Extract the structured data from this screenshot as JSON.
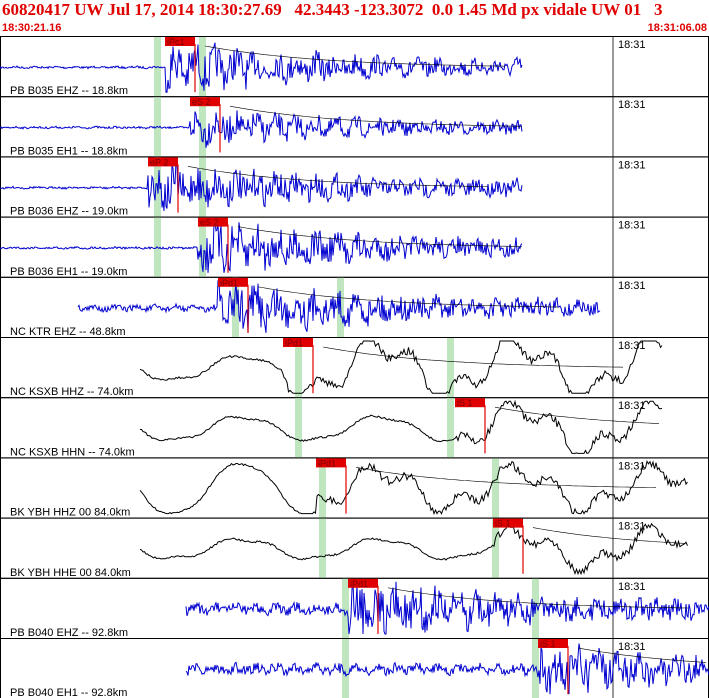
{
  "header": {
    "title": "60820417 UW Jul 17, 2014 18:30:27.69   42.3443 -123.3072  0.0 1.45 Md px vidale UW 01   3",
    "start_time": "18:30:21.16",
    "end_time": "18:31:06.08"
  },
  "colors": {
    "header_red": "#e00000",
    "trace_blue": "#0000d0",
    "trace_black": "#000000",
    "pick_red": "#e00000",
    "green_window": "#bfe6bf"
  },
  "traces": [
    {
      "label": "PB B035 EHZ -- 18.8km",
      "time_label": "18:31",
      "color": "blue",
      "pick": "iPc1"
    },
    {
      "label": "PB B035 EH1 -- 18.8km",
      "time_label": "18:31",
      "color": "blue",
      "pick": "eS 2"
    },
    {
      "label": "PB B036 EHZ -- 19.0km",
      "time_label": "18:31",
      "color": "blue",
      "pick": "eP 2"
    },
    {
      "label": "PB B036 EH1 -- 19.0km",
      "time_label": "18:31",
      "color": "blue",
      "pick": "eS 2"
    },
    {
      "label": "NC KTR EHZ -- 48.8km",
      "time_label": "18:31",
      "color": "blue",
      "pick": "iPd1"
    },
    {
      "label": "NC KSXB HHZ -- 74.0km",
      "time_label": "18:31",
      "color": "black",
      "pick": "iPd1"
    },
    {
      "label": "NC KSXB HHN -- 74.0km",
      "time_label": "18:31",
      "color": "black",
      "pick": "iS 1"
    },
    {
      "label": "BK YBH HHZ 00 84.0km",
      "time_label": "18:31",
      "color": "black",
      "pick": "iPd1"
    },
    {
      "label": "BK YBH HHE 00 84.0km",
      "time_label": "18:31",
      "color": "black",
      "pick": "iS 1"
    },
    {
      "label": "PB B040 EHZ -- 92.8km",
      "time_label": "18:31",
      "color": "blue",
      "pick": "iPd1"
    },
    {
      "label": "PB B040 EH1 -- 92.8km",
      "time_label": "18:31",
      "color": "blue",
      "pick": "iS 1"
    }
  ]
}
